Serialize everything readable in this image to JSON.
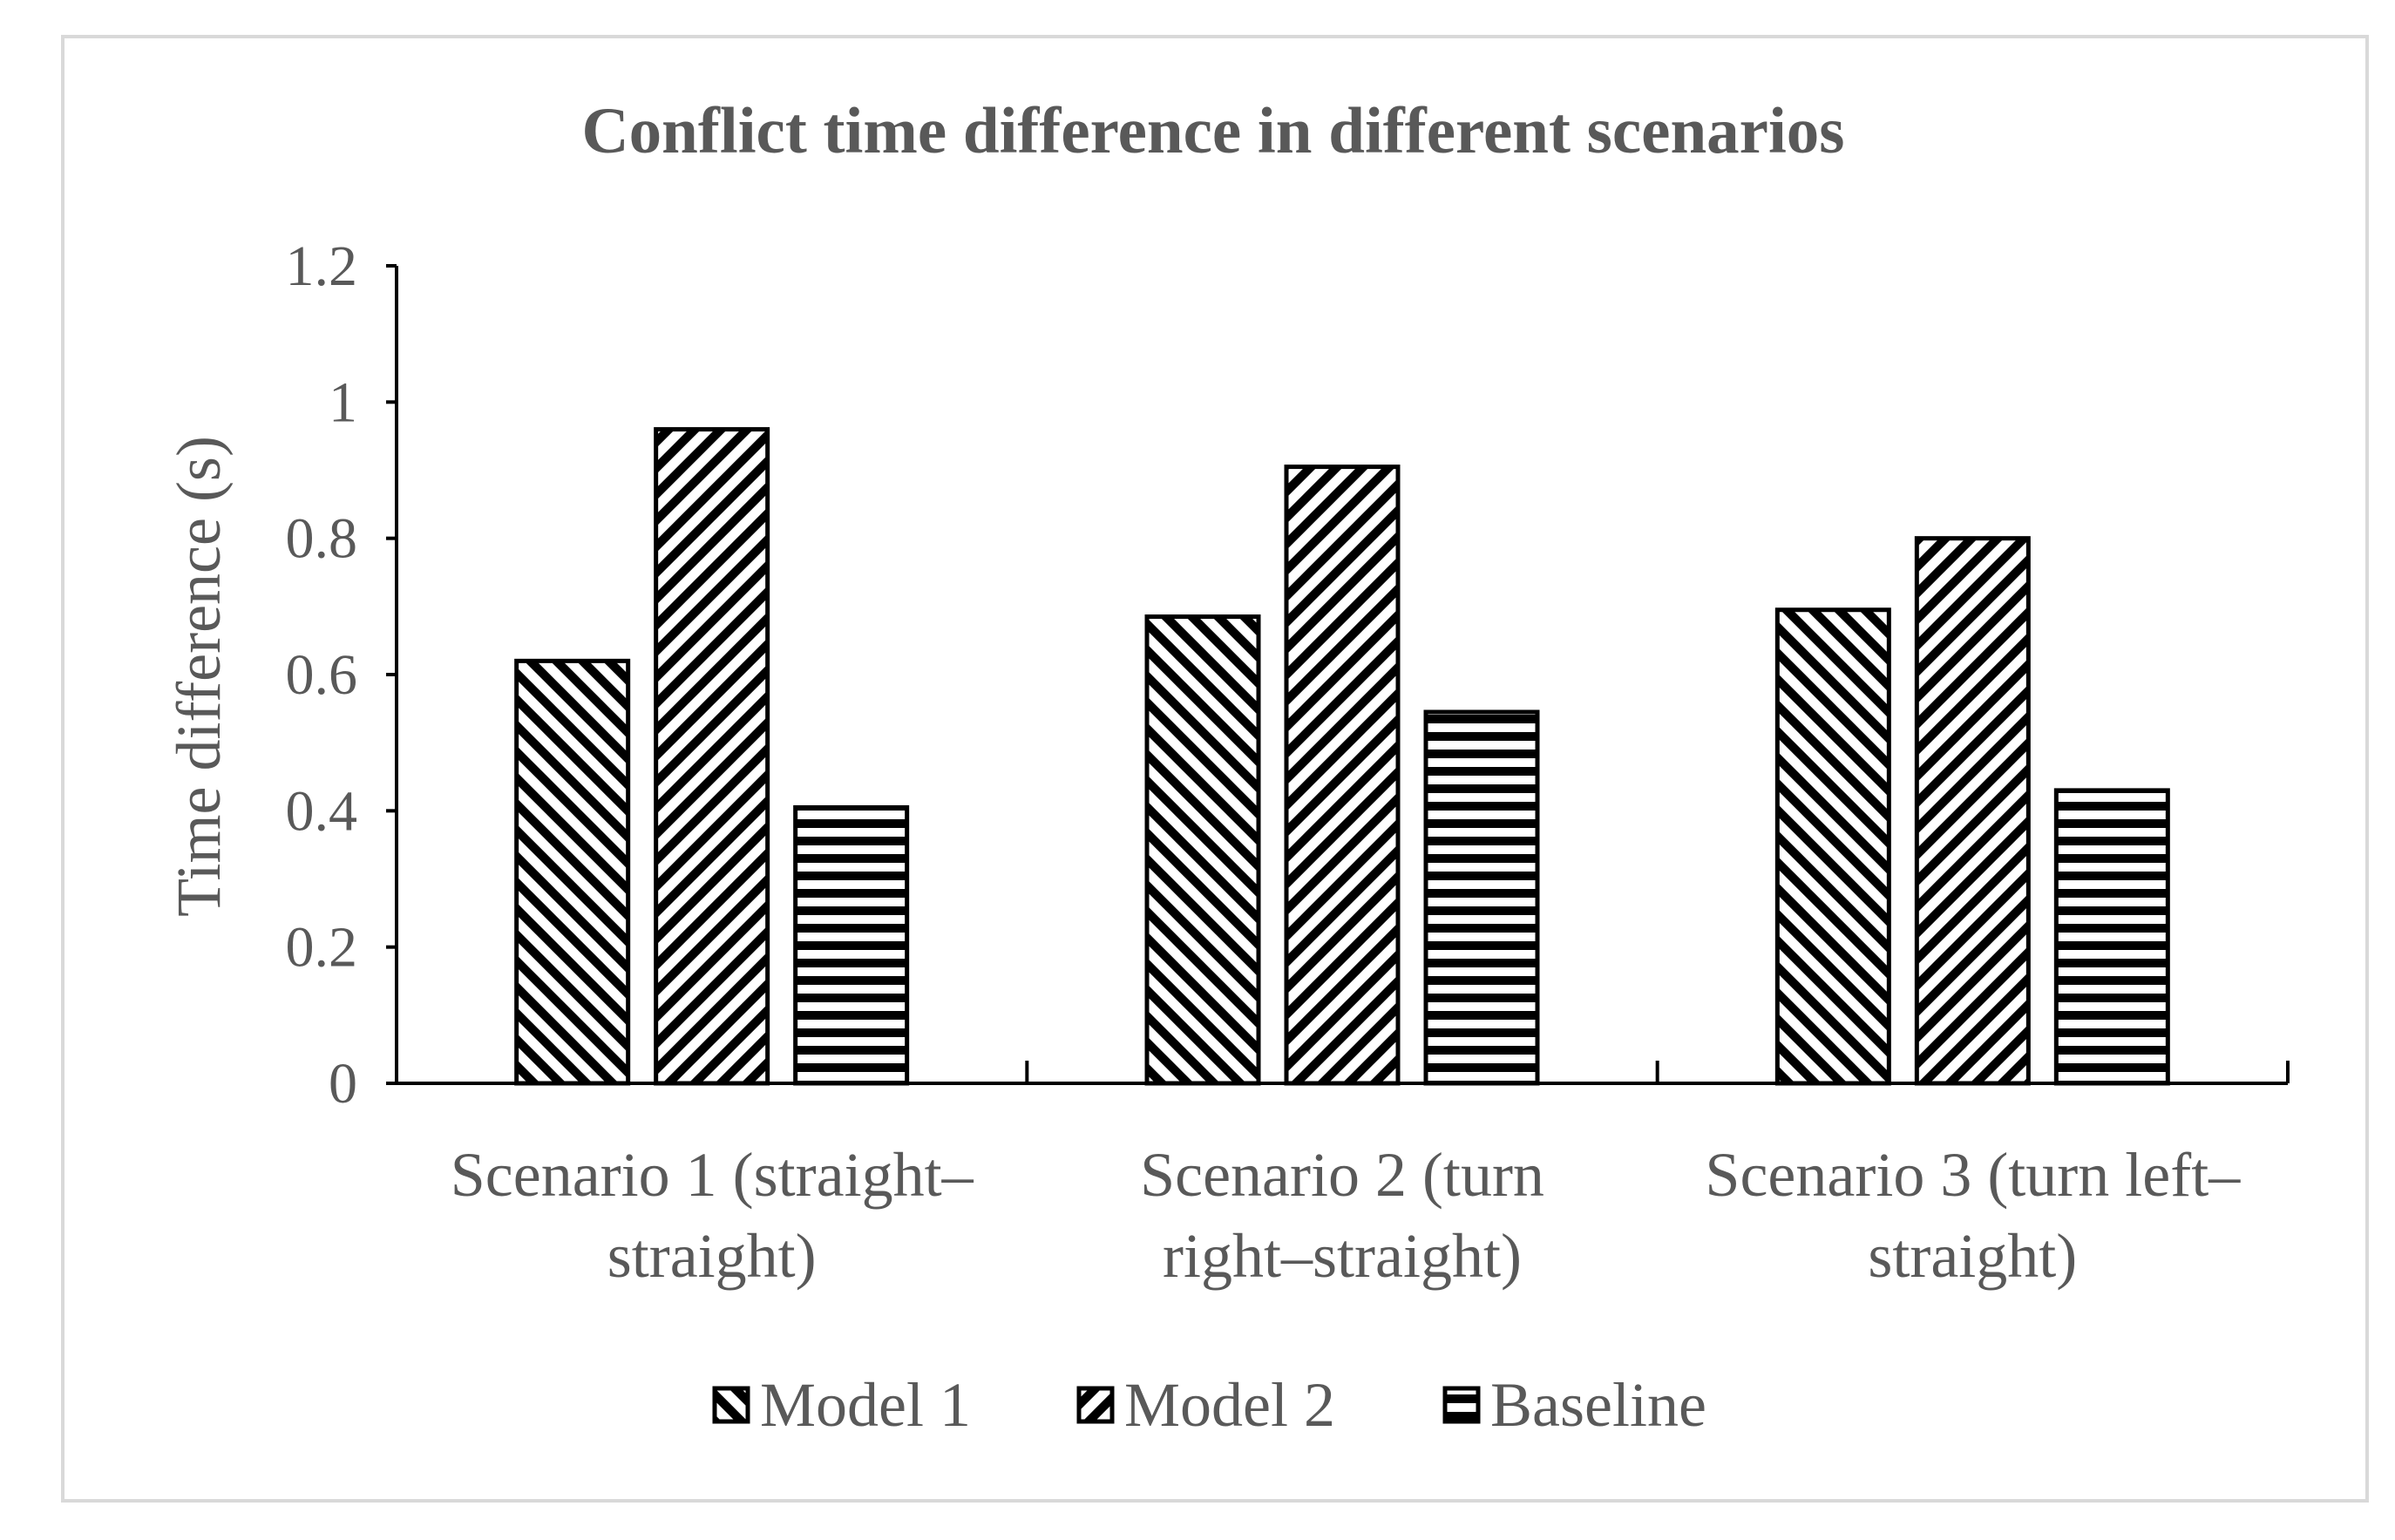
{
  "chart_data": {
    "type": "bar",
    "title": "Conflict time difference in different scenarios",
    "xlabel": "",
    "ylabel": "Time difference (s)",
    "ylim": [
      0,
      1.2
    ],
    "yticks": [
      "0",
      "0.2",
      "0.4",
      "0.6",
      "0.8",
      "1",
      "1.2"
    ],
    "categories": [
      [
        "Scenario 1 (straight–",
        "straight)"
      ],
      [
        "Scenario 2 (turn",
        "right–straight)"
      ],
      [
        "Scenario 3 (turn left–",
        "straight)"
      ]
    ],
    "series": [
      {
        "name": "Model 1",
        "pattern": "diagonal-down",
        "values": [
          0.62,
          0.685,
          0.695
        ]
      },
      {
        "name": "Model 2",
        "pattern": "diagonal-up",
        "values": [
          0.96,
          0.905,
          0.8
        ]
      },
      {
        "name": "Baseline",
        "pattern": "horizontal",
        "values": [
          0.405,
          0.545,
          0.43
        ]
      }
    ],
    "legend_position": "bottom",
    "grid": false,
    "colors": {
      "ink": "#000000",
      "text": "#595959",
      "frame": "#d9d9d9",
      "background": "#ffffff"
    }
  }
}
